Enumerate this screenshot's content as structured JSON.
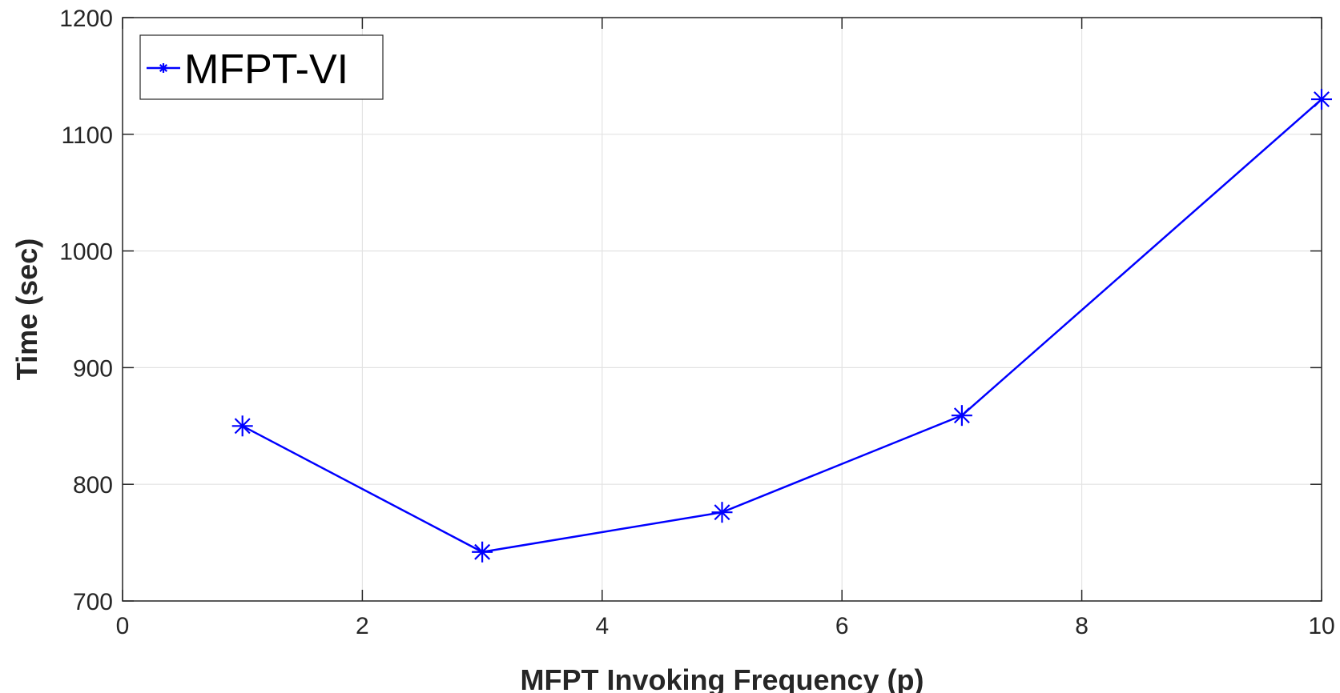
{
  "chart_data": {
    "type": "line",
    "xlabel": "MFPT Invoking Frequency (p)",
    "ylabel": "Time (sec)",
    "xlim": [
      0,
      10
    ],
    "ylim": [
      700,
      1200
    ],
    "xticks": [
      0,
      2,
      4,
      6,
      8,
      10
    ],
    "yticks": [
      700,
      800,
      900,
      1000,
      1100,
      1200
    ],
    "xtick_labels": [
      "0",
      "2",
      "4",
      "6",
      "8",
      "10"
    ],
    "ytick_labels": [
      "700",
      "800",
      "900",
      "1000",
      "1100",
      "1200"
    ],
    "grid": true,
    "legend_position": "top-left",
    "series": [
      {
        "name": "MFPT-VI",
        "color": "#0000ff",
        "marker": "asterisk",
        "x": [
          1,
          3,
          5,
          7,
          10
        ],
        "y": [
          850,
          742,
          776,
          859,
          1130
        ]
      }
    ]
  }
}
